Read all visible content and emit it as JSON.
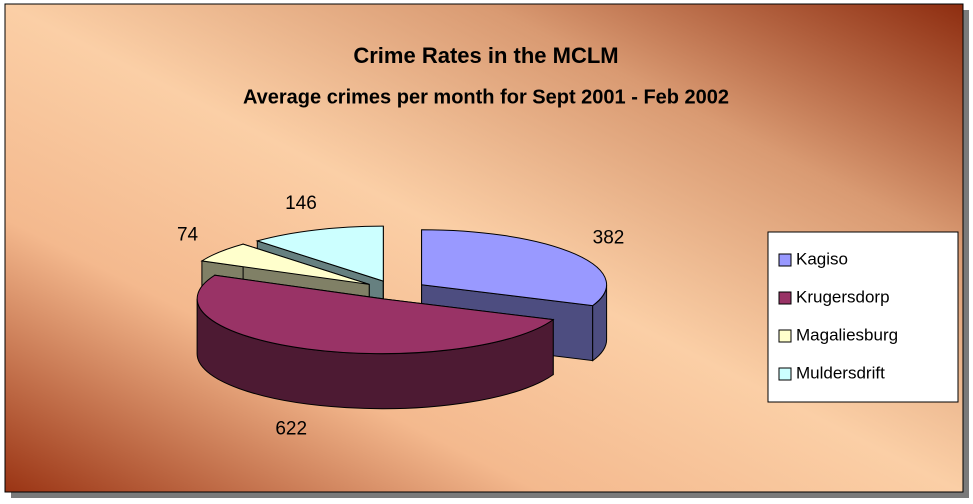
{
  "chart_data": {
    "type": "pie3d",
    "title": "Crime Rates in the MCLM",
    "subtitle": "Average crimes per month for Sept 2001 - Feb 2002",
    "categories": [
      "Kagiso",
      "Krugersdorp",
      "Magaliesburg",
      "Muldersdrift"
    ],
    "values": [
      382,
      622,
      74,
      146
    ],
    "colors": [
      "#9999ff",
      "#993366",
      "#ffffcc",
      "#ccffff"
    ],
    "legend": "right"
  }
}
